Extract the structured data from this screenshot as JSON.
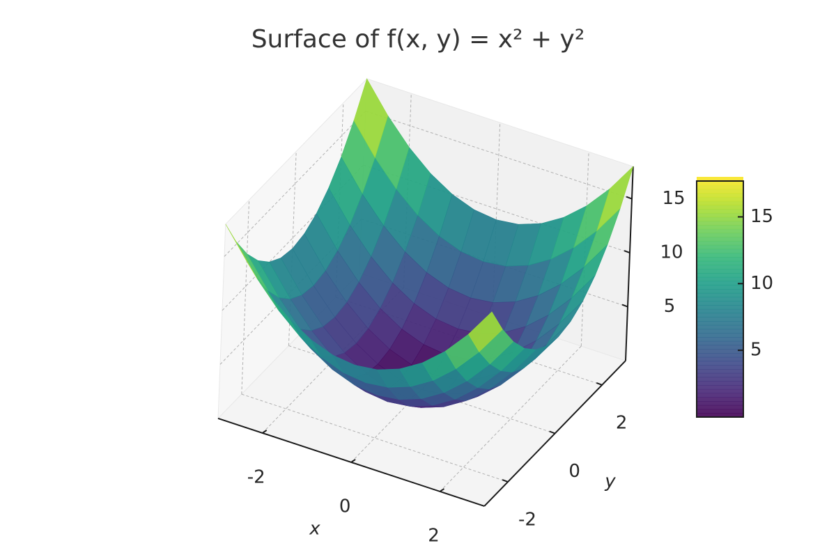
{
  "chart_data": {
    "type": "surface",
    "title": "Surface of f(x, y) = x² + y²",
    "x_label": "x",
    "y_label": "y",
    "x": [
      -3,
      -2.5,
      -2,
      -1.5,
      -1,
      -0.5,
      0,
      0.5,
      1,
      1.5,
      2,
      2.5,
      3
    ],
    "y": [
      -3,
      -2.5,
      -2,
      -1.5,
      -1,
      -0.5,
      0,
      0.5,
      1,
      1.5,
      2,
      2.5,
      3
    ],
    "z": [
      [
        18,
        15.25,
        13,
        11.25,
        10,
        9.25,
        9,
        9.25,
        10,
        11.25,
        13,
        15.25,
        18
      ],
      [
        15.25,
        12.5,
        10.25,
        8.5,
        7.25,
        6.5,
        6.25,
        6.5,
        7.25,
        8.5,
        10.25,
        12.5,
        15.25
      ],
      [
        13,
        10.25,
        8,
        6.25,
        5,
        4.25,
        4,
        4.25,
        5,
        6.25,
        8,
        10.25,
        13
      ],
      [
        11.25,
        8.5,
        6.25,
        4.5,
        3.25,
        2.5,
        2.25,
        2.5,
        3.25,
        4.5,
        6.25,
        8.5,
        11.25
      ],
      [
        10,
        7.25,
        5,
        3.25,
        2,
        1.25,
        1,
        1.25,
        2,
        3.25,
        5,
        7.25,
        10
      ],
      [
        9.25,
        6.5,
        4.25,
        2.5,
        1.25,
        0.5,
        0.25,
        0.5,
        1.25,
        2.5,
        4.25,
        6.5,
        9.25
      ],
      [
        9,
        6.25,
        4,
        2.25,
        1,
        0.25,
        0,
        0.25,
        1,
        2.25,
        4,
        6.25,
        9
      ],
      [
        9.25,
        6.5,
        4.25,
        2.5,
        1.25,
        0.5,
        0.25,
        0.5,
        1.25,
        2.5,
        4.25,
        6.5,
        9.25
      ],
      [
        10,
        7.25,
        5,
        3.25,
        2,
        1.25,
        1,
        1.25,
        2,
        3.25,
        5,
        7.25,
        10
      ],
      [
        11.25,
        8.5,
        6.25,
        4.5,
        3.25,
        2.5,
        2.25,
        2.5,
        3.25,
        4.5,
        6.25,
        8.5,
        11.25
      ],
      [
        13,
        10.25,
        8,
        6.25,
        5,
        4.25,
        4,
        4.25,
        5,
        6.25,
        8,
        10.25,
        13
      ],
      [
        15.25,
        12.5,
        10.25,
        8.5,
        7.25,
        6.5,
        6.25,
        6.5,
        7.25,
        8.5,
        10.25,
        12.5,
        15.25
      ],
      [
        18,
        15.25,
        13,
        11.25,
        10,
        9.25,
        9,
        9.25,
        10,
        11.25,
        13,
        15.25,
        18
      ]
    ],
    "xlim": [
      -3,
      3
    ],
    "ylim": [
      -3,
      3
    ],
    "zlim": [
      0,
      18
    ],
    "xticks": [
      -2,
      0,
      2
    ],
    "yticks": [
      -2,
      0,
      2
    ],
    "zticks": [
      5,
      10,
      15
    ],
    "grid": true,
    "colormap": [
      "#440154",
      "#482878",
      "#3e4989",
      "#31688e",
      "#26828e",
      "#1f9e89",
      "#35b779",
      "#6ece58",
      "#b5de2b",
      "#fde725"
    ],
    "colorbar": {
      "lim": [
        0,
        18
      ],
      "ticks": [
        5,
        10,
        15
      ]
    }
  }
}
